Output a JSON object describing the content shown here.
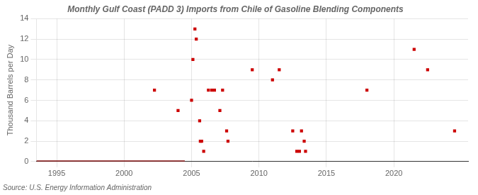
{
  "chart_data": {
    "type": "scatter",
    "title": "Monthly Gulf Coast (PADD 3) Imports from Chile of Gasoline Blending Components",
    "ylabel": "Thousand Barrels per Day",
    "annotations": [
      "Source: U.S. Energy Information Administration"
    ],
    "xlim": [
      1993.5,
      2025.5
    ],
    "ylim": [
      0,
      14
    ],
    "xticks": [
      1995,
      2000,
      2005,
      2010,
      2015,
      2020
    ],
    "yticks": [
      0,
      2,
      4,
      6,
      8,
      10,
      12,
      14
    ],
    "grid": true,
    "series": [
      {
        "type": "scatter",
        "color": "#cc0000",
        "marker": "square",
        "x": [
          2002.25,
          2004.0,
          2005.0,
          2005.1,
          2005.25,
          2005.35,
          2005.6,
          2005.65,
          2005.75,
          2005.9,
          2006.25,
          2006.5,
          2006.7,
          2007.1,
          2007.3,
          2007.6,
          2007.7,
          2009.5,
          2011.0,
          2011.5,
          2012.5,
          2012.8,
          2013.0,
          2013.15,
          2013.35,
          2013.45,
          2018.0,
          2021.5,
          2022.5,
          2024.5
        ],
        "values": [
          7,
          5,
          6,
          10,
          13,
          12,
          4,
          2,
          2,
          1,
          7,
          7,
          7,
          5,
          7,
          3,
          2,
          9,
          8,
          9,
          3,
          1,
          1,
          3,
          2,
          1,
          7,
          11,
          9,
          3
        ]
      },
      {
        "type": "line",
        "color": "#8b1a1a",
        "line_style": "solid",
        "x": [
          1993.5,
          2004.5
        ],
        "values": [
          0,
          0
        ]
      }
    ]
  }
}
